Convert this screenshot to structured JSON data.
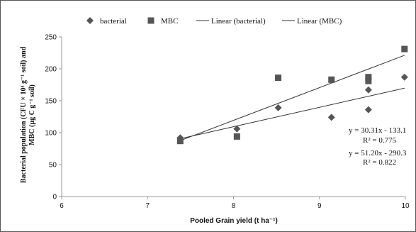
{
  "chart_data": {
    "type": "scatter",
    "xlabel": "Pooled Grain yield (t ha⁻¹)",
    "ylabel_line1": "Bacterial population (CFU × 10⁴ g⁻¹ soil) and",
    "ylabel_line2": "MBC (µg C g⁻¹ soil)",
    "xlim": [
      6,
      10
    ],
    "ylim": [
      0,
      250
    ],
    "xticks": [
      6,
      7,
      8,
      9,
      10
    ],
    "yticks": [
      0,
      50,
      100,
      150,
      200,
      250
    ],
    "grid": false,
    "legend_position": "top",
    "legend": [
      "bacterial",
      "MBC",
      "Linear (bacterial)",
      "Linear (MBC)"
    ],
    "series": [
      {
        "name": "bacterial",
        "marker": "diamond",
        "color": "#555555",
        "x": [
          7.38,
          8.04,
          8.52,
          9.14,
          9.57,
          9.57,
          9.99
        ],
        "y": [
          92,
          106,
          139,
          124,
          136,
          167,
          187
        ]
      },
      {
        "name": "MBC",
        "marker": "square",
        "color": "#555555",
        "x": [
          7.38,
          8.04,
          8.52,
          9.14,
          9.57,
          9.57,
          9.99
        ],
        "y": [
          87,
          94,
          186,
          183,
          187,
          181,
          231
        ]
      }
    ],
    "trendlines": [
      {
        "series": "bacterial",
        "slope": 30.31,
        "intercept": -133.1,
        "x_range": [
          7.38,
          9.99
        ]
      },
      {
        "series": "MBC",
        "slope": 51.2,
        "intercept": -290.3,
        "x_range": [
          7.38,
          9.99
        ]
      }
    ],
    "annotations": [
      "y = 30.31x - 133.1",
      "R² = 0.775",
      "y = 51.20x - 290.3",
      "R² = 0.822"
    ],
    "colors": {
      "marker": "#555555",
      "line": "#333333",
      "axis": "#9a9a9a"
    }
  }
}
